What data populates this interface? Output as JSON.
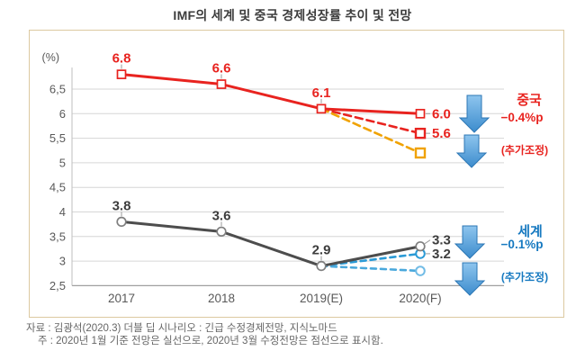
{
  "title": "IMF의 세계 및 중국 경제성장률 추이 및 전망",
  "footnotes": {
    "source": "자료 : 김광석(2020.3) 더블 딥 시나리오 : 긴급 수정경제전망, 지식노마드",
    "note": "주 : 2020년 1월 기준 전망은 실선으로, 2020년 3월 수정전망은 점선으로 표시함."
  },
  "annotations": {
    "china": {
      "name": "중국",
      "delta": "−0.4%p",
      "extra": "(추가조정)",
      "color": "#e8231f",
      "arrow_icon": "down-arrow"
    },
    "world": {
      "name": "세계",
      "delta": "−0.1%p",
      "extra": "(추가조정)",
      "color": "#1679c0",
      "arrow_icon": "down-arrow"
    }
  },
  "chart_data": {
    "type": "line",
    "title": "IMF의 세계 및 중국 경제성장률 추이 및 전망",
    "unit_label": "(%)",
    "categories": [
      "2017",
      "2018",
      "2019(E)",
      "2020(F)"
    ],
    "ylim": [
      2.5,
      6.9
    ],
    "yticks": [
      2.5,
      3,
      3.5,
      4,
      4.5,
      5,
      5.5,
      6,
      6.5
    ],
    "ytick_labels": [
      "2,5",
      "3",
      "3,5",
      "4",
      "4,5",
      "5",
      "5,5",
      "6",
      "6,5"
    ],
    "grid": true,
    "legend": "none",
    "series": [
      {
        "name": "중국 2020.1 기준 전망(실선)",
        "color": "#e8231f",
        "label_color": "#e8231f",
        "style": "solid",
        "width": 3,
        "marker": "square",
        "marker_size": 9,
        "marker_stroke_width": 1.7,
        "values": [
          6.8,
          6.6,
          6.1,
          6.0
        ],
        "point_labels": [
          {
            "idx": 0,
            "text": "6.8",
            "pos": "top"
          },
          {
            "idx": 1,
            "text": "6.6",
            "pos": "top"
          },
          {
            "idx": 2,
            "text": "6.1",
            "pos": "top"
          },
          {
            "idx": 3,
            "text": "6.0",
            "pos": "right"
          }
        ]
      },
      {
        "name": "중국 2020.3 수정전망(점선)",
        "color": "#e8231f",
        "label_color": "#e8231f",
        "style": "dashed",
        "width": 2.6,
        "marker": "square",
        "marker_size": 10,
        "marker_stroke_width": 2.4,
        "marker_last_only": true,
        "values": [
          null,
          null,
          6.1,
          5.6
        ],
        "point_labels": [
          {
            "idx": 3,
            "text": "5.6",
            "pos": "right"
          }
        ]
      },
      {
        "name": "중국 추가조정(점선)",
        "color": "#f0a202",
        "style": "dashed",
        "width": 2.6,
        "marker": "square",
        "marker_size": 10,
        "marker_stroke_width": 2.4,
        "marker_last_only": true,
        "values": [
          null,
          null,
          6.1,
          5.2
        ],
        "point_labels": []
      },
      {
        "name": "세계 2020.1 기준 전망(실선)",
        "color": "#4d4d4d",
        "label_color": "#3d3d3d",
        "marker_stroke": "#7f7f7f",
        "style": "solid",
        "width": 3,
        "marker": "circle",
        "marker_size": 9.6,
        "marker_stroke_width": 1.7,
        "values": [
          3.8,
          3.6,
          2.9,
          3.3
        ],
        "point_labels": [
          {
            "idx": 0,
            "text": "3.8",
            "pos": "top"
          },
          {
            "idx": 1,
            "text": "3.6",
            "pos": "top"
          },
          {
            "idx": 2,
            "text": "2.9",
            "pos": "top"
          },
          {
            "idx": 3,
            "text": "3.3",
            "pos": "right_up"
          }
        ]
      },
      {
        "name": "세계 2020.3 수정전망(점선)",
        "color": "#2a9ad6",
        "label_color": "#3d3d3d",
        "style": "dashed",
        "width": 2.6,
        "marker": "circle",
        "marker_size": 9.6,
        "marker_stroke_width": 2,
        "marker_last_only": true,
        "values": [
          null,
          null,
          2.9,
          3.2
        ],
        "plot_values": [
          null,
          null,
          2.9,
          3.15
        ],
        "point_labels": [
          {
            "idx": 3,
            "text": "3.2",
            "pos": "right"
          }
        ]
      },
      {
        "name": "세계 추가조정(점선)",
        "color": "#49a8dc",
        "marker_stroke": "#72bce6",
        "style": "dashed",
        "width": 2.6,
        "marker": "circle",
        "marker_size": 9.6,
        "marker_stroke_width": 2,
        "marker_last_only": true,
        "values": [
          null,
          null,
          2.9,
          2.8
        ],
        "point_labels": []
      }
    ]
  }
}
